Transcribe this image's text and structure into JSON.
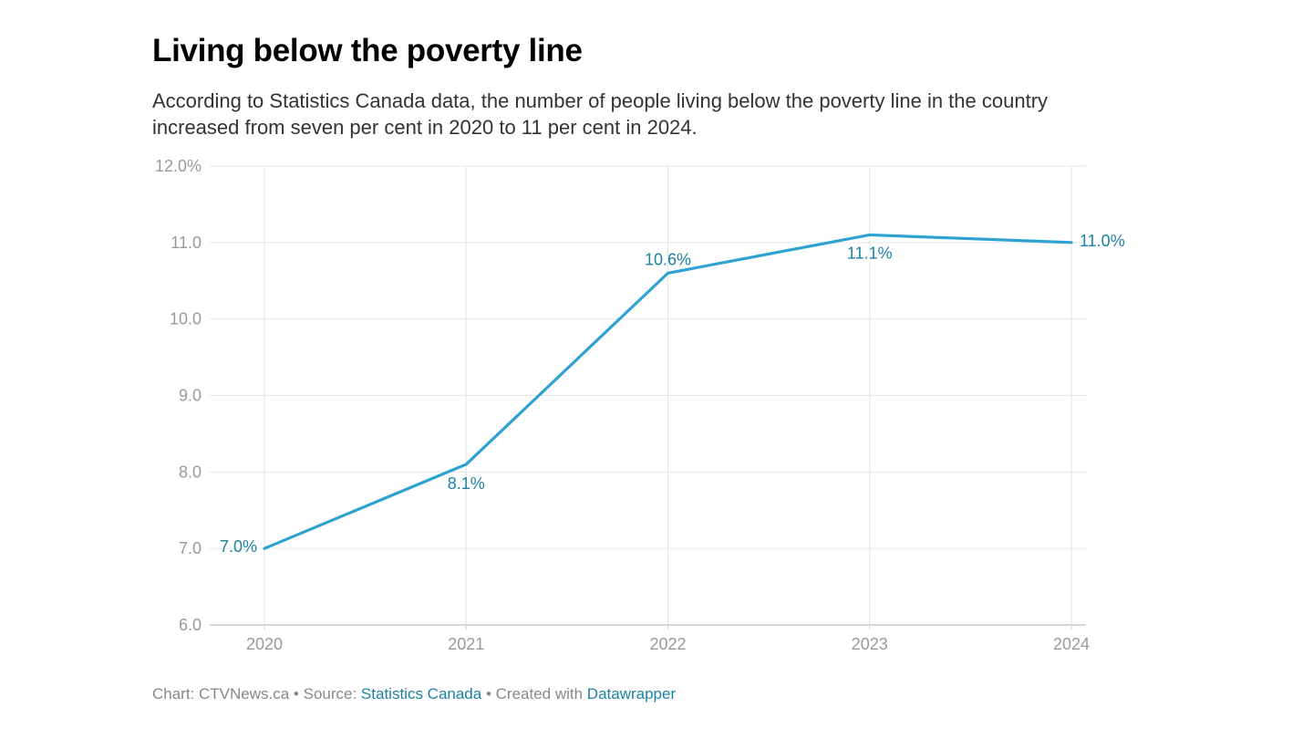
{
  "header": {
    "title": "Living below the poverty line",
    "subtitle": "According to Statistics Canada data, the number of people living below the poverty line in the country increased from seven per cent in 2020 to 11 per cent in 2024."
  },
  "chart_data": {
    "type": "line",
    "x": [
      "2020",
      "2021",
      "2022",
      "2023",
      "2024"
    ],
    "series": [
      {
        "values": [
          7.0,
          8.1,
          10.6,
          11.1,
          11.0
        ],
        "color": "#2ea3d1",
        "labels": [
          "7.0%",
          "8.1%",
          "10.6%",
          "11.1%",
          "11.0%"
        ]
      }
    ],
    "ylim": [
      6.0,
      12.0
    ],
    "yticks": [
      6.0,
      7.0,
      8.0,
      9.0,
      10.0,
      11.0,
      12.0
    ],
    "ytick_labels": [
      "6.0",
      "7.0",
      "8.0",
      "9.0",
      "10.0",
      "11.0",
      "12.0%"
    ],
    "xlabel": "",
    "ylabel": "",
    "grid": true,
    "label_color": "#1d81a2"
  },
  "footer": {
    "chart_credit": "Chart: CTVNews.ca",
    "separator": " • ",
    "source_prefix": "Source: ",
    "source_link": "Statistics Canada",
    "created_prefix": "Created with ",
    "created_link": "Datawrapper"
  }
}
